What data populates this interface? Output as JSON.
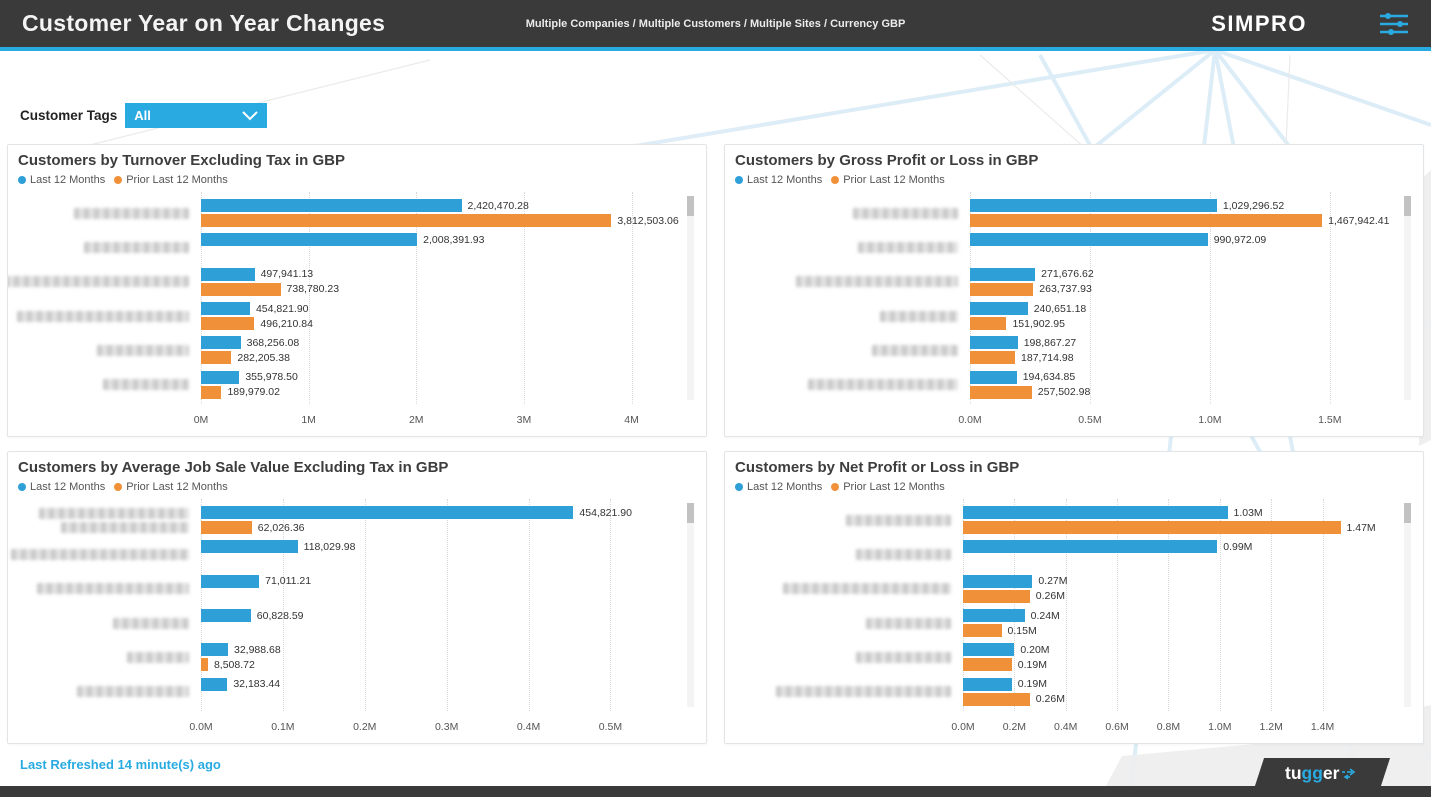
{
  "header": {
    "title": "Customer Year on Year Changes",
    "breadcrumb": "Multiple Companies / Multiple Customers / Multiple Sites / Currency GBP",
    "brand": "SIMPRO"
  },
  "filter": {
    "label": "Customer Tags",
    "value": "All"
  },
  "legend": {
    "last12": "Last 12 Months",
    "prior": "Prior Last 12 Months"
  },
  "colors": {
    "accent": "#29abe2",
    "bar_blue": "#2f9fd8",
    "bar_orange": "#f0913a",
    "header_bg": "#3a3a3a"
  },
  "footer": {
    "last_refreshed": "Last Refreshed 14 minute(s) ago",
    "brand": {
      "part1": "tu",
      "part2": "gg",
      "part3": "er"
    }
  },
  "chart_data": [
    {
      "type": "bar",
      "orientation": "horizontal",
      "title": "Customers by Turnover Excluding Tax in GBP",
      "series_names": [
        "Last 12 Months",
        "Prior Last 12 Months"
      ],
      "legend_position": "top-left",
      "grid": "vertical-dotted",
      "customer_names_redacted": true,
      "x_tick_labels": [
        "0M",
        "1M",
        "2M",
        "3M",
        "4M"
      ],
      "x_tick_values": [
        0,
        1000000,
        2000000,
        3000000,
        4000000
      ],
      "x_draw_max": 4450000,
      "rows": [
        {
          "label_widths": [
            115
          ],
          "values": {
            "last12": 2420470.28,
            "prior": 3812503.06
          },
          "labels": {
            "last12": "2,420,470.28",
            "prior": "3,812,503.06"
          }
        },
        {
          "label_widths": [
            105
          ],
          "values": {
            "last12": 2008391.93,
            "prior": null
          },
          "labels": {
            "last12": "2,008,391.93",
            "prior": null
          }
        },
        {
          "label_widths": [
            185
          ],
          "values": {
            "last12": 497941.13,
            "prior": 738780.23
          },
          "labels": {
            "last12": "497,941.13",
            "prior": "738,780.23"
          }
        },
        {
          "label_widths": [
            172
          ],
          "values": {
            "last12": 454821.9,
            "prior": 496210.84
          },
          "labels": {
            "last12": "454,821.90",
            "prior": "496,210.84"
          }
        },
        {
          "label_widths": [
            92
          ],
          "values": {
            "last12": 368256.08,
            "prior": 282205.38
          },
          "labels": {
            "last12": "368,256.08",
            "prior": "282,205.38"
          }
        },
        {
          "label_widths": [
            86
          ],
          "values": {
            "last12": 355978.5,
            "prior": 189979.02
          },
          "labels": {
            "last12": "355,978.50",
            "prior": "189,979.02"
          }
        }
      ]
    },
    {
      "type": "bar",
      "orientation": "horizontal",
      "title": "Customers by Gross Profit or Loss in GBP",
      "series_names": [
        "Last 12 Months",
        "Prior Last 12 Months"
      ],
      "legend_position": "top-left",
      "grid": "vertical-dotted",
      "customer_names_redacted": true,
      "x_tick_labels": [
        "0.0M",
        "0.5M",
        "1.0M",
        "1.5M"
      ],
      "x_tick_values": [
        0,
        500000,
        1000000,
        1500000
      ],
      "x_draw_max": 1780000,
      "rows": [
        {
          "label_widths": [
            105
          ],
          "values": {
            "last12": 1029296.52,
            "prior": 1467942.41
          },
          "labels": {
            "last12": "1,029,296.52",
            "prior": "1,467,942.41"
          }
        },
        {
          "label_widths": [
            100
          ],
          "values": {
            "last12": 990972.09,
            "prior": null
          },
          "labels": {
            "last12": "990,972.09",
            "prior": null
          }
        },
        {
          "label_widths": [
            162
          ],
          "values": {
            "last12": 271676.62,
            "prior": 263737.93
          },
          "labels": {
            "last12": "271,676.62",
            "prior": "263,737.93"
          }
        },
        {
          "label_widths": [
            78
          ],
          "values": {
            "last12": 240651.18,
            "prior": 151902.95
          },
          "labels": {
            "last12": "240,651.18",
            "prior": "151,902.95"
          }
        },
        {
          "label_widths": [
            86
          ],
          "values": {
            "last12": 198867.27,
            "prior": 187714.98
          },
          "labels": {
            "last12": "198,867.27",
            "prior": "187,714.98"
          }
        },
        {
          "label_widths": [
            150
          ],
          "values": {
            "last12": 194634.85,
            "prior": 257502.98
          },
          "labels": {
            "last12": "194,634.85",
            "prior": "257,502.98"
          }
        }
      ]
    },
    {
      "type": "bar",
      "orientation": "horizontal",
      "title": "Customers by Average Job Sale Value Excluding Tax in GBP",
      "series_names": [
        "Last 12 Months",
        "Prior Last 12 Months"
      ],
      "legend_position": "top-left",
      "grid": "vertical-dotted",
      "customer_names_redacted": true,
      "x_tick_labels": [
        "0.0M",
        "0.1M",
        "0.2M",
        "0.3M",
        "0.4M",
        "0.5M"
      ],
      "x_tick_values": [
        0,
        100000,
        200000,
        300000,
        400000,
        500000
      ],
      "x_draw_max": 585000,
      "rows": [
        {
          "label_widths": [
            150,
            128
          ],
          "values": {
            "last12": 454821.9,
            "prior": 62026.36
          },
          "labels": {
            "last12": "454,821.90",
            "prior": "62,026.36"
          }
        },
        {
          "label_widths": [
            178
          ],
          "values": {
            "last12": 118029.98,
            "prior": null
          },
          "labels": {
            "last12": "118,029.98",
            "prior": null
          }
        },
        {
          "label_widths": [
            152
          ],
          "values": {
            "last12": 71011.21,
            "prior": null
          },
          "labels": {
            "last12": "71,011.21",
            "prior": null
          }
        },
        {
          "label_widths": [
            76
          ],
          "values": {
            "last12": 60828.59,
            "prior": null
          },
          "labels": {
            "last12": "60,828.59",
            "prior": null
          }
        },
        {
          "label_widths": [
            62
          ],
          "values": {
            "last12": 32988.68,
            "prior": 8508.72
          },
          "labels": {
            "last12": "32,988.68",
            "prior": "8,508.72"
          }
        },
        {
          "label_widths": [
            112
          ],
          "values": {
            "last12": 32183.44,
            "prior": null
          },
          "labels": {
            "last12": "32,183.44",
            "prior": null
          }
        }
      ]
    },
    {
      "type": "bar",
      "orientation": "horizontal",
      "title": "Customers by Net Profit or Loss in GBP",
      "series_names": [
        "Last 12 Months",
        "Prior Last 12 Months"
      ],
      "legend_position": "top-left",
      "grid": "vertical-dotted",
      "customer_names_redacted": true,
      "x_tick_labels": [
        "0.0M",
        "0.2M",
        "0.4M",
        "0.6M",
        "0.8M",
        "1.0M",
        "1.2M",
        "1.4M"
      ],
      "x_tick_values": [
        0,
        200000,
        400000,
        600000,
        800000,
        1000000,
        1200000,
        1400000
      ],
      "x_draw_max": 1690000,
      "rows": [
        {
          "label_widths": [
            105
          ],
          "values": {
            "last12": 1030000,
            "prior": 1470000
          },
          "labels": {
            "last12": "1.03M",
            "prior": "1.47M"
          }
        },
        {
          "label_widths": [
            95
          ],
          "values": {
            "last12": 990000,
            "prior": null
          },
          "labels": {
            "last12": "0.99M",
            "prior": null
          }
        },
        {
          "label_widths": [
            168
          ],
          "values": {
            "last12": 270000,
            "prior": 260000
          },
          "labels": {
            "last12": "0.27M",
            "prior": "0.26M"
          }
        },
        {
          "label_widths": [
            85
          ],
          "values": {
            "last12": 240000,
            "prior": 150000
          },
          "labels": {
            "last12": "0.24M",
            "prior": "0.15M"
          }
        },
        {
          "label_widths": [
            95
          ],
          "values": {
            "last12": 200000,
            "prior": 190000
          },
          "labels": {
            "last12": "0.20M",
            "prior": "0.19M"
          }
        },
        {
          "label_widths": [
            175
          ],
          "values": {
            "last12": 190000,
            "prior": 260000
          },
          "labels": {
            "last12": "0.19M",
            "prior": "0.26M"
          }
        }
      ]
    }
  ]
}
